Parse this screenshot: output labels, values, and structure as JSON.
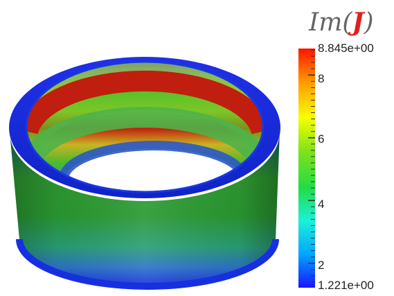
{
  "title": {
    "main": "Im",
    "open": "(",
    "symbol": "J",
    "close": ")"
  },
  "colorbar": {
    "max_label": "8.845e+00",
    "min_label": "1.221e+00",
    "ticks": [
      "8",
      "6",
      "4",
      "2"
    ],
    "min": 1.221,
    "max": 8.845,
    "colormap": [
      "#1a14ff",
      "#00a6ff",
      "#1cf0d8",
      "#22dc44",
      "#7fe21a",
      "#f6ff00",
      "#ff9a00",
      "#ff1400"
    ]
  },
  "object": {
    "shape": "cylindrical-ring"
  }
}
